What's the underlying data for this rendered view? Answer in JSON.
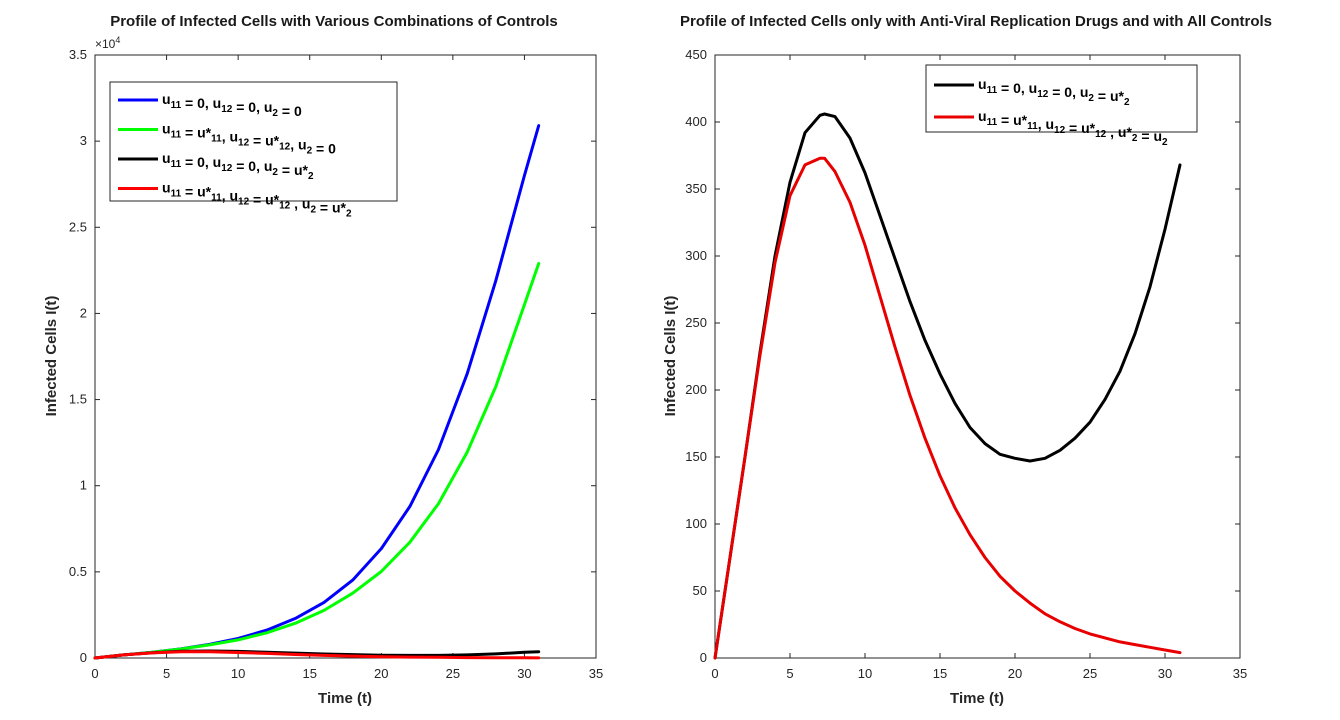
{
  "chart_data": [
    {
      "type": "line",
      "title": "Profile of Infected Cells with Various Combinations of Controls",
      "xlabel": "Time (t)",
      "ylabel": "Infected Cells I(t)",
      "xlim": [
        0,
        35
      ],
      "ylim": [
        0,
        35000
      ],
      "xticks": [
        0,
        5,
        10,
        15,
        20,
        25,
        30,
        35
      ],
      "xtick_labels": [
        "0",
        "5",
        "10",
        "15",
        "20",
        "25",
        "30",
        "35"
      ],
      "yticks": [
        0,
        5000,
        10000,
        15000,
        20000,
        25000,
        30000,
        35000
      ],
      "ytick_labels": [
        "0",
        "0.5",
        "1",
        "1.5",
        "2",
        "2.5",
        "3",
        "3.5"
      ],
      "y_multiplier": {
        "base": "×10",
        "exponent": "4"
      },
      "grid": false,
      "legend_position": "top-left",
      "x": [
        0,
        2,
        4,
        6,
        8,
        10,
        12,
        14,
        16,
        18,
        20,
        22,
        24,
        26,
        28,
        30,
        31
      ],
      "series": [
        {
          "name": "u11 = 0, u12 = 0, u2 = 0",
          "legend_parts": [
            [
              "u",
              ""
            ],
            [
              "11",
              "sub"
            ],
            [
              " = 0, u",
              ""
            ],
            [
              "12",
              "sub"
            ],
            [
              " = 0, u",
              ""
            ],
            [
              "2",
              "sub"
            ],
            [
              " = 0",
              ""
            ]
          ],
          "color": "#0000ff",
          "values": [
            0,
            180,
            330,
            530,
            790,
            1130,
            1620,
            2300,
            3230,
            4520,
            6350,
            8800,
            12100,
            16500,
            21900,
            28000,
            30900
          ]
        },
        {
          "name": "u11 = u*11, u12 = u*12, u2 = 0",
          "legend_parts": [
            [
              "u",
              ""
            ],
            [
              "11",
              "sub"
            ],
            [
              " = u*",
              ""
            ],
            [
              "11",
              "sub"
            ],
            [
              ", u",
              ""
            ],
            [
              "12",
              "sub"
            ],
            [
              " = u*",
              ""
            ],
            [
              "12",
              "sub"
            ],
            [
              ", u",
              ""
            ],
            [
              "2",
              "sub"
            ],
            [
              " = 0",
              ""
            ]
          ],
          "color": "#00ff00",
          "values": [
            0,
            180,
            330,
            520,
            760,
            1050,
            1460,
            2020,
            2760,
            3760,
            5020,
            6720,
            8960,
            11950,
            15750,
            20500,
            22900
          ]
        },
        {
          "name": "u11 = 0, u12 = 0, u2 = u*2",
          "legend_parts": [
            [
              "u",
              ""
            ],
            [
              "11",
              "sub"
            ],
            [
              " = 0, u",
              ""
            ],
            [
              "12",
              "sub"
            ],
            [
              " = 0, u",
              ""
            ],
            [
              "2",
              "sub"
            ],
            [
              " = u*",
              ""
            ],
            [
              "2",
              "sub"
            ]
          ],
          "color": "#000000",
          "values": [
            0,
            180,
            300,
            390,
            405,
            385,
            335,
            285,
            235,
            195,
            165,
            150,
            152,
            180,
            240,
            330,
            368
          ]
        },
        {
          "name": "u11 = u*11, u12 = u*12 , u2 =  u*2",
          "legend_parts": [
            [
              "u",
              ""
            ],
            [
              "11",
              "sub"
            ],
            [
              " = u*",
              ""
            ],
            [
              "11",
              "sub"
            ],
            [
              ", u",
              ""
            ],
            [
              "12",
              "sub"
            ],
            [
              " = u*",
              ""
            ],
            [
              "12",
              "sub"
            ],
            [
              " , u",
              ""
            ],
            [
              "2",
              "sub"
            ],
            [
              " =  u*",
              ""
            ],
            [
              "2",
              "sub"
            ]
          ],
          "color": "#ff0000",
          "values": [
            0,
            180,
            295,
            368,
            360,
            320,
            265,
            205,
            152,
            110,
            78,
            55,
            38,
            25,
            16,
            9,
            5
          ]
        }
      ]
    },
    {
      "type": "line",
      "title": "Profile of Infected Cells only with Anti-Viral Replication Drugs and with All Controls",
      "xlabel": "Time (t)",
      "ylabel": "Infected Cells I(t)",
      "xlim": [
        0,
        35
      ],
      "ylim": [
        0,
        450
      ],
      "xticks": [
        0,
        5,
        10,
        15,
        20,
        25,
        30,
        35
      ],
      "xtick_labels": [
        "0",
        "5",
        "10",
        "15",
        "20",
        "25",
        "30",
        "35"
      ],
      "yticks": [
        0,
        50,
        100,
        150,
        200,
        250,
        300,
        350,
        400,
        450
      ],
      "ytick_labels": [
        "0",
        "50",
        "100",
        "150",
        "200",
        "250",
        "300",
        "350",
        "400",
        "450"
      ],
      "grid": false,
      "legend_position": "top-right",
      "x": [
        0,
        1,
        2,
        3,
        4,
        5,
        6,
        7,
        7.3,
        8,
        9,
        10,
        11,
        12,
        13,
        14,
        15,
        16,
        17,
        18,
        19,
        20,
        21,
        22,
        23,
        24,
        25,
        26,
        27,
        28,
        29,
        30,
        31
      ],
      "series": [
        {
          "name": "u11 = 0, u12 = 0, u2 = u*2",
          "legend_parts": [
            [
              "u",
              ""
            ],
            [
              "11",
              "sub"
            ],
            [
              " = 0, u",
              ""
            ],
            [
              "12",
              "sub"
            ],
            [
              " = 0, u",
              ""
            ],
            [
              "2",
              "sub"
            ],
            [
              " = u*",
              ""
            ],
            [
              "2",
              "sub"
            ]
          ],
          "color": "#000000",
          "values": [
            0,
            75,
            150,
            228,
            300,
            355,
            392,
            405,
            406,
            404,
            388,
            362,
            330,
            298,
            266,
            237,
            212,
            190,
            172,
            160,
            152,
            149,
            147,
            149,
            155,
            164,
            176,
            193,
            214,
            242,
            277,
            320,
            368
          ]
        },
        {
          "name": "u11 = u*11, u12 = u*12 , u*2 =  u2",
          "legend_parts": [
            [
              "u",
              ""
            ],
            [
              "11",
              "sub"
            ],
            [
              " = u*",
              ""
            ],
            [
              "11",
              "sub"
            ],
            [
              ", u",
              ""
            ],
            [
              "12",
              "sub"
            ],
            [
              " = u*",
              ""
            ],
            [
              "12",
              "sub"
            ],
            [
              " , u*",
              ""
            ],
            [
              "2",
              "sub"
            ],
            [
              " =  u",
              ""
            ],
            [
              "2",
              "sub"
            ]
          ],
          "color": "#e80000",
          "values": [
            0,
            75,
            150,
            226,
            295,
            345,
            368,
            373,
            373,
            363,
            340,
            308,
            270,
            232,
            196,
            164,
            136,
            112,
            92,
            75,
            61,
            50,
            41,
            33,
            27,
            22,
            18,
            15,
            12,
            10,
            8,
            6,
            4
          ]
        }
      ]
    }
  ]
}
